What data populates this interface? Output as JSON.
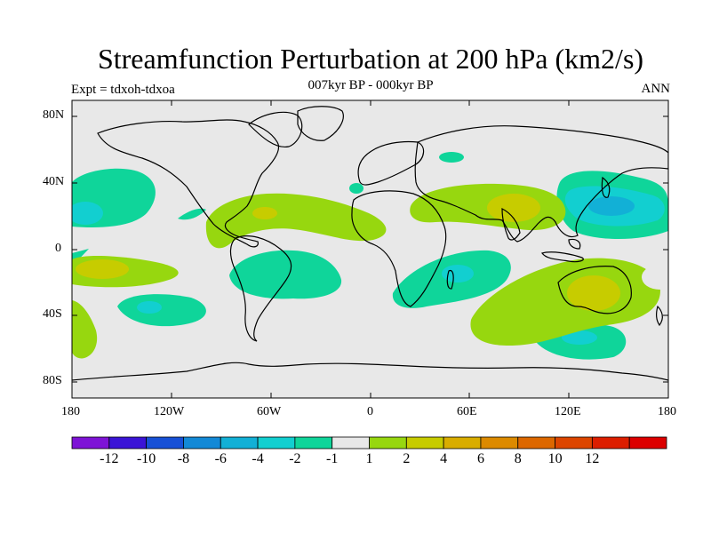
{
  "title": "Streamfunction Perturbation at 200 hPa (km2/s)",
  "subtitle": "007kyr BP - 000kyr BP",
  "left_label": "Expt = tdxoh-tdxoa",
  "right_label": "ANN",
  "map": {
    "background": "#e8e8e8",
    "lat_ticks": [
      "80N",
      "40N",
      "0",
      "40S",
      "80S"
    ],
    "lon_ticks": [
      "180",
      "120W",
      "60W",
      "0",
      "60E",
      "120E",
      "180"
    ]
  },
  "colorbar": {
    "colors": [
      "#7e13d6",
      "#3b14d6",
      "#1750d6",
      "#1389d6",
      "#12b0d6",
      "#12cfd0",
      "#0fd59a",
      "#e8e8e8",
      "#97d70f",
      "#c7cc00",
      "#d9ad00",
      "#dc8a00",
      "#dc6700",
      "#dc4500",
      "#dc1e00",
      "#dc0000"
    ],
    "labels": [
      "-12",
      "-10",
      "-8",
      "-6",
      "-4",
      "-2",
      "-1",
      "1",
      "2",
      "4",
      "6",
      "8",
      "10",
      "12"
    ]
  }
}
